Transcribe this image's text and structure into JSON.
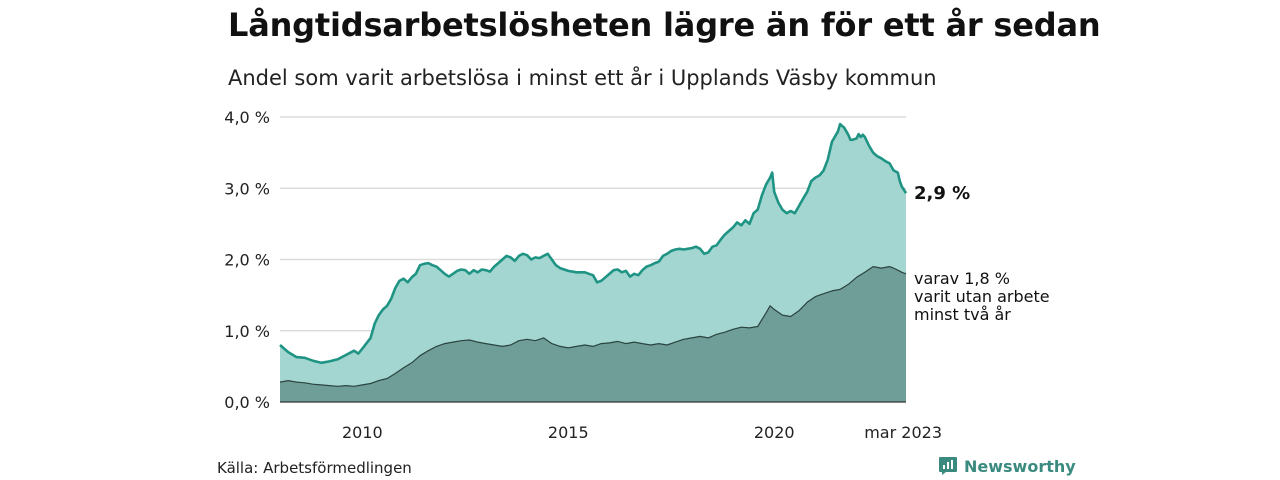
{
  "header": {
    "title": "Långtidsarbetslösheten lägre än för ett år sedan",
    "subtitle": "Andel som varit arbetslösa i minst ett år i Upplands Väsby kommun"
  },
  "footer": {
    "source": "Källa: Arbetsförmedlingen",
    "brand": "Newsworthy"
  },
  "colors": {
    "total_fill": "#a3d6d0",
    "total_line": "#1f9484",
    "sub_fill": "#6f9e98",
    "sub_line": "#2c4440",
    "grid": "#dcdcdc",
    "brand": "#3a8a80"
  },
  "chart_data": {
    "type": "area",
    "y_ticks": [
      {
        "value": 0,
        "label": "0,0 %"
      },
      {
        "value": 1,
        "label": "1,0 %"
      },
      {
        "value": 2,
        "label": "2,0 %"
      },
      {
        "value": 3,
        "label": "3,0 %"
      },
      {
        "value": 4,
        "label": "4,0 %"
      }
    ],
    "x_ticks": [
      {
        "value": 2010,
        "label": "2010"
      },
      {
        "value": 2015,
        "label": "2015"
      },
      {
        "value": 2020,
        "label": "2020"
      },
      {
        "value": 2023.2,
        "label": "mar 2023"
      }
    ],
    "ylim": [
      0,
      4
    ],
    "xlim": [
      2008.0,
      2023.2
    ],
    "series": [
      {
        "key": "total",
        "annotation": "2,9 %",
        "points": [
          [
            2008.0,
            0.8
          ],
          [
            2008.2,
            0.7
          ],
          [
            2008.4,
            0.63
          ],
          [
            2008.6,
            0.62
          ],
          [
            2008.8,
            0.58
          ],
          [
            2009.0,
            0.55
          ],
          [
            2009.2,
            0.57
          ],
          [
            2009.4,
            0.6
          ],
          [
            2009.6,
            0.66
          ],
          [
            2009.8,
            0.72
          ],
          [
            2009.9,
            0.68
          ],
          [
            2010.0,
            0.75
          ],
          [
            2010.2,
            0.9
          ],
          [
            2010.3,
            1.1
          ],
          [
            2010.4,
            1.22
          ],
          [
            2010.5,
            1.3
          ],
          [
            2010.6,
            1.35
          ],
          [
            2010.7,
            1.45
          ],
          [
            2010.8,
            1.6
          ],
          [
            2010.9,
            1.7
          ],
          [
            2011.0,
            1.73
          ],
          [
            2011.1,
            1.68
          ],
          [
            2011.2,
            1.75
          ],
          [
            2011.3,
            1.8
          ],
          [
            2011.4,
            1.92
          ],
          [
            2011.5,
            1.94
          ],
          [
            2011.6,
            1.95
          ],
          [
            2011.7,
            1.92
          ],
          [
            2011.8,
            1.9
          ],
          [
            2011.9,
            1.85
          ],
          [
            2012.0,
            1.8
          ],
          [
            2012.1,
            1.76
          ],
          [
            2012.2,
            1.8
          ],
          [
            2012.3,
            1.84
          ],
          [
            2012.4,
            1.86
          ],
          [
            2012.5,
            1.85
          ],
          [
            2012.6,
            1.8
          ],
          [
            2012.7,
            1.85
          ],
          [
            2012.8,
            1.82
          ],
          [
            2012.9,
            1.86
          ],
          [
            2013.0,
            1.85
          ],
          [
            2013.1,
            1.83
          ],
          [
            2013.2,
            1.9
          ],
          [
            2013.3,
            1.95
          ],
          [
            2013.4,
            2.0
          ],
          [
            2013.5,
            2.05
          ],
          [
            2013.6,
            2.03
          ],
          [
            2013.7,
            1.98
          ],
          [
            2013.8,
            2.05
          ],
          [
            2013.9,
            2.08
          ],
          [
            2014.0,
            2.06
          ],
          [
            2014.1,
            2.0
          ],
          [
            2014.2,
            2.03
          ],
          [
            2014.3,
            2.02
          ],
          [
            2014.4,
            2.05
          ],
          [
            2014.5,
            2.08
          ],
          [
            2014.6,
            2.0
          ],
          [
            2014.7,
            1.92
          ],
          [
            2014.8,
            1.88
          ],
          [
            2014.9,
            1.86
          ],
          [
            2015.0,
            1.84
          ],
          [
            2015.2,
            1.82
          ],
          [
            2015.4,
            1.82
          ],
          [
            2015.5,
            1.8
          ],
          [
            2015.6,
            1.78
          ],
          [
            2015.7,
            1.68
          ],
          [
            2015.8,
            1.7
          ],
          [
            2015.9,
            1.75
          ],
          [
            2016.0,
            1.8
          ],
          [
            2016.1,
            1.85
          ],
          [
            2016.2,
            1.86
          ],
          [
            2016.3,
            1.82
          ],
          [
            2016.4,
            1.84
          ],
          [
            2016.5,
            1.76
          ],
          [
            2016.6,
            1.8
          ],
          [
            2016.7,
            1.78
          ],
          [
            2016.8,
            1.85
          ],
          [
            2016.9,
            1.9
          ],
          [
            2017.0,
            1.92
          ],
          [
            2017.1,
            1.95
          ],
          [
            2017.2,
            1.97
          ],
          [
            2017.3,
            2.05
          ],
          [
            2017.4,
            2.08
          ],
          [
            2017.5,
            2.12
          ],
          [
            2017.6,
            2.14
          ],
          [
            2017.7,
            2.15
          ],
          [
            2017.8,
            2.14
          ],
          [
            2017.9,
            2.15
          ],
          [
            2018.0,
            2.16
          ],
          [
            2018.1,
            2.18
          ],
          [
            2018.2,
            2.15
          ],
          [
            2018.3,
            2.08
          ],
          [
            2018.4,
            2.1
          ],
          [
            2018.5,
            2.18
          ],
          [
            2018.6,
            2.2
          ],
          [
            2018.7,
            2.28
          ],
          [
            2018.8,
            2.35
          ],
          [
            2018.9,
            2.4
          ],
          [
            2019.0,
            2.45
          ],
          [
            2019.1,
            2.52
          ],
          [
            2019.2,
            2.48
          ],
          [
            2019.3,
            2.55
          ],
          [
            2019.4,
            2.5
          ],
          [
            2019.5,
            2.65
          ],
          [
            2019.6,
            2.7
          ],
          [
            2019.7,
            2.9
          ],
          [
            2019.8,
            3.05
          ],
          [
            2019.9,
            3.15
          ],
          [
            2019.95,
            3.22
          ],
          [
            2020.0,
            2.95
          ],
          [
            2020.1,
            2.8
          ],
          [
            2020.2,
            2.7
          ],
          [
            2020.3,
            2.65
          ],
          [
            2020.4,
            2.68
          ],
          [
            2020.5,
            2.65
          ],
          [
            2020.6,
            2.75
          ],
          [
            2020.7,
            2.85
          ],
          [
            2020.8,
            2.95
          ],
          [
            2020.9,
            3.1
          ],
          [
            2021.0,
            3.15
          ],
          [
            2021.1,
            3.18
          ],
          [
            2021.2,
            3.25
          ],
          [
            2021.3,
            3.4
          ],
          [
            2021.4,
            3.65
          ],
          [
            2021.5,
            3.75
          ],
          [
            2021.55,
            3.8
          ],
          [
            2021.6,
            3.9
          ],
          [
            2021.7,
            3.85
          ],
          [
            2021.8,
            3.75
          ],
          [
            2021.85,
            3.68
          ],
          [
            2021.9,
            3.68
          ],
          [
            2022.0,
            3.7
          ],
          [
            2022.05,
            3.76
          ],
          [
            2022.1,
            3.72
          ],
          [
            2022.15,
            3.75
          ],
          [
            2022.2,
            3.72
          ],
          [
            2022.3,
            3.6
          ],
          [
            2022.4,
            3.5
          ],
          [
            2022.5,
            3.45
          ],
          [
            2022.6,
            3.42
          ],
          [
            2022.7,
            3.38
          ],
          [
            2022.8,
            3.35
          ],
          [
            2022.9,
            3.25
          ],
          [
            2023.0,
            3.22
          ],
          [
            2023.05,
            3.1
          ],
          [
            2023.1,
            3.02
          ],
          [
            2023.15,
            2.98
          ],
          [
            2023.2,
            2.93
          ]
        ]
      },
      {
        "key": "sub",
        "annotation": [
          "varav 1,8 %",
          "varit utan arbete",
          "minst två år"
        ],
        "points": [
          [
            2008.0,
            0.28
          ],
          [
            2008.2,
            0.3
          ],
          [
            2008.4,
            0.28
          ],
          [
            2008.6,
            0.27
          ],
          [
            2008.8,
            0.25
          ],
          [
            2009.0,
            0.24
          ],
          [
            2009.2,
            0.23
          ],
          [
            2009.4,
            0.22
          ],
          [
            2009.6,
            0.23
          ],
          [
            2009.8,
            0.22
          ],
          [
            2010.0,
            0.24
          ],
          [
            2010.2,
            0.26
          ],
          [
            2010.4,
            0.3
          ],
          [
            2010.6,
            0.33
          ],
          [
            2010.8,
            0.4
          ],
          [
            2011.0,
            0.48
          ],
          [
            2011.2,
            0.55
          ],
          [
            2011.4,
            0.65
          ],
          [
            2011.6,
            0.72
          ],
          [
            2011.8,
            0.78
          ],
          [
            2012.0,
            0.82
          ],
          [
            2012.2,
            0.84
          ],
          [
            2012.4,
            0.86
          ],
          [
            2012.6,
            0.87
          ],
          [
            2012.8,
            0.84
          ],
          [
            2013.0,
            0.82
          ],
          [
            2013.2,
            0.8
          ],
          [
            2013.4,
            0.78
          ],
          [
            2013.6,
            0.8
          ],
          [
            2013.8,
            0.86
          ],
          [
            2014.0,
            0.88
          ],
          [
            2014.2,
            0.86
          ],
          [
            2014.4,
            0.9
          ],
          [
            2014.6,
            0.82
          ],
          [
            2014.8,
            0.78
          ],
          [
            2015.0,
            0.76
          ],
          [
            2015.2,
            0.78
          ],
          [
            2015.4,
            0.8
          ],
          [
            2015.6,
            0.78
          ],
          [
            2015.8,
            0.82
          ],
          [
            2016.0,
            0.83
          ],
          [
            2016.2,
            0.85
          ],
          [
            2016.4,
            0.82
          ],
          [
            2016.6,
            0.84
          ],
          [
            2016.8,
            0.82
          ],
          [
            2017.0,
            0.8
          ],
          [
            2017.2,
            0.82
          ],
          [
            2017.4,
            0.8
          ],
          [
            2017.6,
            0.84
          ],
          [
            2017.8,
            0.88
          ],
          [
            2018.0,
            0.9
          ],
          [
            2018.2,
            0.92
          ],
          [
            2018.4,
            0.9
          ],
          [
            2018.6,
            0.95
          ],
          [
            2018.8,
            0.98
          ],
          [
            2019.0,
            1.02
          ],
          [
            2019.2,
            1.05
          ],
          [
            2019.4,
            1.04
          ],
          [
            2019.6,
            1.06
          ],
          [
            2019.8,
            1.25
          ],
          [
            2019.9,
            1.35
          ],
          [
            2020.0,
            1.3
          ],
          [
            2020.2,
            1.22
          ],
          [
            2020.4,
            1.2
          ],
          [
            2020.6,
            1.28
          ],
          [
            2020.8,
            1.4
          ],
          [
            2021.0,
            1.48
          ],
          [
            2021.2,
            1.52
          ],
          [
            2021.4,
            1.56
          ],
          [
            2021.6,
            1.58
          ],
          [
            2021.8,
            1.65
          ],
          [
            2022.0,
            1.75
          ],
          [
            2022.2,
            1.82
          ],
          [
            2022.4,
            1.9
          ],
          [
            2022.6,
            1.88
          ],
          [
            2022.8,
            1.9
          ],
          [
            2022.9,
            1.88
          ],
          [
            2023.0,
            1.85
          ],
          [
            2023.1,
            1.82
          ],
          [
            2023.2,
            1.8
          ]
        ]
      }
    ]
  }
}
